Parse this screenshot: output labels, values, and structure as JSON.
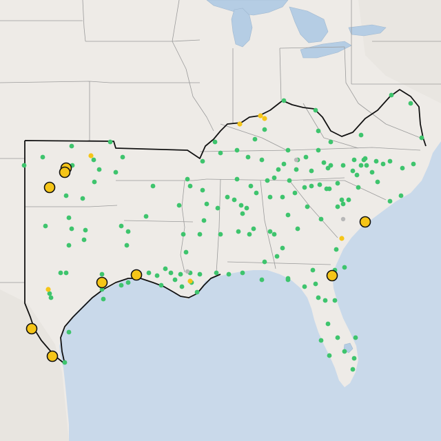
{
  "map": {
    "colors": {
      "water": "#c9d9ea",
      "land": "#eeebe7",
      "land_shade": "#e6e2dd",
      "state_line": "#9a9a9a",
      "region_boundary": "#111111",
      "lake": "#b5cde4",
      "station_green": "#3ec46d",
      "station_yellow": "#f5c518",
      "station_gray": "#b8b8b8",
      "large_marker_fill": "#f5c518",
      "large_marker_stroke": "#111111"
    },
    "legend": null
  }
}
